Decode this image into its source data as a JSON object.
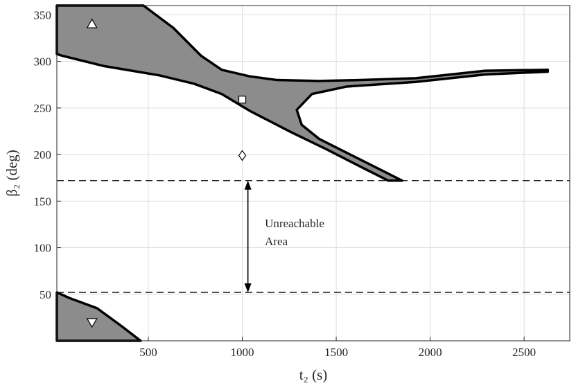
{
  "chart_data": {
    "type": "region",
    "xlabel": "t₂ (s)",
    "ylabel": "β₂ (deg)",
    "xlim": [
      13,
      2743
    ],
    "ylim": [
      0,
      360
    ],
    "xticks": [
      500,
      1000,
      1500,
      2000,
      2500
    ],
    "yticks": [
      50,
      100,
      150,
      200,
      250,
      300,
      350
    ],
    "grid": true,
    "regions": [
      {
        "color": "#8c8c8c",
        "x": [
          13,
          474,
          633,
          781,
          891,
          1039,
          1186,
          1408,
          1629,
          1924,
          2293,
          2626,
          2626,
          2293,
          1924,
          1555,
          1371,
          1290,
          1316,
          1408,
          1555,
          1703,
          1851,
          1777,
          1629,
          1445,
          1260,
          1039,
          891,
          744,
          559,
          264,
          43,
          13
        ],
        "y": [
          360,
          360,
          336,
          306,
          291,
          284,
          280,
          279,
          280,
          282,
          290,
          291,
          289,
          286,
          278,
          273,
          265,
          248,
          232,
          217,
          202,
          187,
          172,
          172,
          187,
          206,
          224,
          247,
          265,
          276,
          285,
          295,
          306,
          308
        ]
      },
      {
        "color": "#8c8c8c",
        "x": [
          13,
          79,
          227,
          356,
          459,
          13
        ],
        "y": [
          52,
          46,
          35,
          16,
          0,
          0
        ]
      }
    ],
    "markers": [
      {
        "shape": "triangle-up",
        "x": 200,
        "y": 340
      },
      {
        "shape": "square",
        "x": 1000,
        "y": 259
      },
      {
        "shape": "diamond",
        "x": 1000,
        "y": 199
      },
      {
        "shape": "triangle-down",
        "x": 200,
        "y": 20
      }
    ],
    "hlines": [
      172,
      52
    ],
    "arrow": {
      "x": 1030,
      "y": [
        172,
        52
      ]
    },
    "annotation": {
      "lines": [
        "Unreachable",
        "Area"
      ],
      "x": 1120,
      "y": 122
    }
  }
}
